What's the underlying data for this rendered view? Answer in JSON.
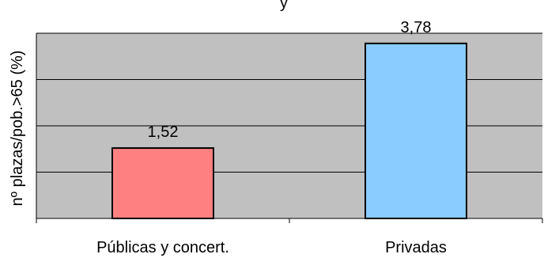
{
  "chart_data": {
    "type": "bar",
    "title": "y",
    "ylabel": "nº plazas/pob.>65 (%)",
    "xlabel": "",
    "categories": [
      "Públicas y concert.",
      "Privadas"
    ],
    "values": [
      1.52,
      3.78
    ],
    "data_labels": [
      "1,52",
      "3,78"
    ],
    "bar_colors": [
      "#ff8080",
      "#8accff"
    ],
    "ylim": [
      0,
      4
    ],
    "gridlines": [
      1,
      2,
      3,
      4
    ],
    "grid": true,
    "legend": "none",
    "plot_background": "#c0c0c0"
  }
}
